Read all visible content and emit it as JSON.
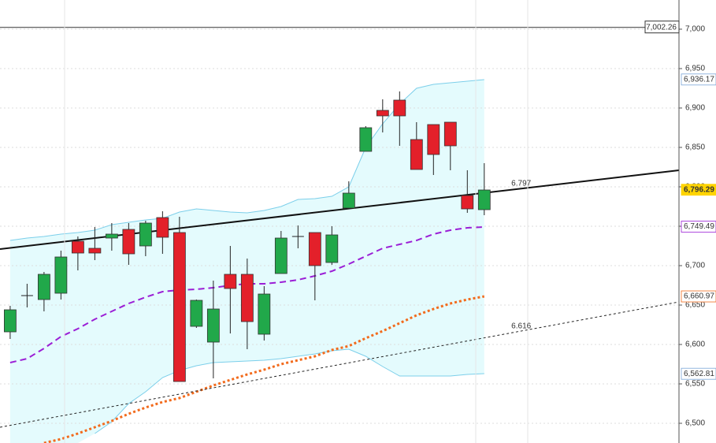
{
  "chart_data": {
    "type": "candlestick",
    "xlim": [
      -0.6,
      39.5
    ],
    "ylim": [
      6475,
      7037
    ],
    "yticks": [
      {
        "value": 6500,
        "label": "6,500"
      },
      {
        "value": 6550,
        "label": "6,550"
      },
      {
        "value": 6600,
        "label": "6,600"
      },
      {
        "value": 6650,
        "label": "6,650"
      },
      {
        "value": 6700,
        "label": "6,700"
      },
      {
        "value": 6750,
        "label": "6,750"
      },
      {
        "value": 6800,
        "label": "6,800"
      },
      {
        "value": 6850,
        "label": "6,850"
      },
      {
        "value": 6900,
        "label": "6,900"
      },
      {
        "value": 6950,
        "label": "6,950"
      },
      {
        "value": 7000,
        "label": "7,000"
      }
    ],
    "grid": true,
    "up_color": "#21a84a",
    "down_color": "#e3202a",
    "open": [
      6616,
      6662,
      6657,
      6665,
      6731,
      6722,
      6735,
      6746,
      6725,
      6761,
      6742,
      6623,
      6603,
      6689,
      6689,
      6613,
      6690,
      6737,
      6742,
      6704,
      6773,
      6845,
      6897,
      6910,
      6860,
      6879,
      6882,
      6789,
      6771
    ],
    "high": [
      6649,
      6677,
      6692,
      6719,
      6737,
      6749,
      6754,
      6754,
      6757,
      6769,
      6762,
      6657,
      6681,
      6725,
      6709,
      6674,
      6744,
      6751,
      6742,
      6750,
      6807,
      6877,
      6911,
      6921,
      6882,
      6879,
      6882,
      6821,
      6830
    ],
    "low": [
      6607,
      6647,
      6642,
      6657,
      6694,
      6707,
      6719,
      6701,
      6712,
      6715,
      6553,
      6621,
      6557,
      6614,
      6594,
      6605,
      6690,
      6722,
      6656,
      6701,
      6773,
      6845,
      6869,
      6852,
      6822,
      6815,
      6821,
      6767,
      6764
    ],
    "close": [
      6644,
      6662,
      6689,
      6711,
      6716,
      6716,
      6740,
      6715,
      6754,
      6736,
      6553,
      6656,
      6645,
      6671,
      6629,
      6664,
      6735,
      6737,
      6700,
      6739,
      6792,
      6875,
      6890,
      6890,
      6822,
      6841,
      6852,
      6772,
      6796
    ],
    "series": [
      {
        "role": "upper_band",
        "color": "#7ccfea",
        "dash": "",
        "width": 1,
        "values": [
          6732,
          6735,
          6737,
          6740,
          6742,
          6745,
          6752,
          6755,
          6758,
          6760,
          6768,
          6772,
          6770,
          6768,
          6767,
          6770,
          6775,
          6784,
          6785,
          6788,
          6800,
          6850,
          6880,
          6905,
          6925,
          6930,
          6932,
          6934,
          6936
        ]
      },
      {
        "role": "lower_band",
        "color": "#7ccfea",
        "dash": "",
        "width": 1,
        "values": [
          null,
          null,
          null,
          null,
          null,
          6487,
          6502,
          6525,
          6540,
          6558,
          6567,
          6573,
          6577,
          6578,
          6579,
          6580,
          6582,
          6585,
          6588,
          6592,
          6594,
          6585,
          6572,
          6560,
          6560,
          6560,
          6560,
          6562,
          6563
        ]
      },
      {
        "role": "ma",
        "color": "#9b1fd6",
        "dash": "8 5",
        "width": 2,
        "values": [
          6577,
          6582,
          6595,
          6610,
          6620,
          6632,
          6642,
          6652,
          6660,
          6667,
          6669,
          6670,
          6672,
          6675,
          6677,
          6677,
          6679,
          6682,
          6687,
          6693,
          6702,
          6712,
          6722,
          6727,
          6732,
          6740,
          6745,
          6748,
          6749
        ]
      },
      {
        "role": "ma",
        "color": "#f26b1d",
        "dash": "3 3",
        "width": 3,
        "values": [
          null,
          null,
          6475,
          6480,
          6487,
          6495,
          6503,
          6512,
          6520,
          6527,
          6532,
          6540,
          6548,
          6555,
          6562,
          6568,
          6575,
          6580,
          6585,
          6593,
          6598,
          6608,
          6617,
          6627,
          6637,
          6645,
          6652,
          6657,
          6661
        ]
      }
    ],
    "trendlines": [
      {
        "x": [
          -0.6,
          39.5
        ],
        "y": [
          6721,
          6821
        ],
        "color": "#111111",
        "dash": "",
        "width": 2,
        "label": {
          "x": 29.6,
          "value": 6797,
          "label": "6.797"
        }
      },
      {
        "x": [
          -0.6,
          39.5
        ],
        "y": [
          6495,
          6654
        ],
        "color": "#222222",
        "dash": "3 3",
        "width": 1,
        "label": {
          "x": 29.6,
          "value": 6616,
          "label": "6.616"
        }
      }
    ],
    "level_line": {
      "value": 7002.26,
      "label": "7,002.26"
    },
    "price_labels": [
      {
        "value": 6936.17,
        "label": "6,936.17",
        "color": "#7aa6d8",
        "bg": "#ffffff"
      },
      {
        "value": 6796.29,
        "label": "6,796.29",
        "color": "#000000",
        "bg": "#ffd400"
      },
      {
        "value": 6749.49,
        "label": "6,749.49",
        "color": "#9b1fd6",
        "bg": "#ffffff"
      },
      {
        "value": 6660.97,
        "label": "6,660.97",
        "color": "#f26b1d",
        "bg": "#ffffff"
      },
      {
        "value": 6562.81,
        "label": "6,562.81",
        "color": "#7aa6d8",
        "bg": "#ffffff"
      }
    ]
  }
}
